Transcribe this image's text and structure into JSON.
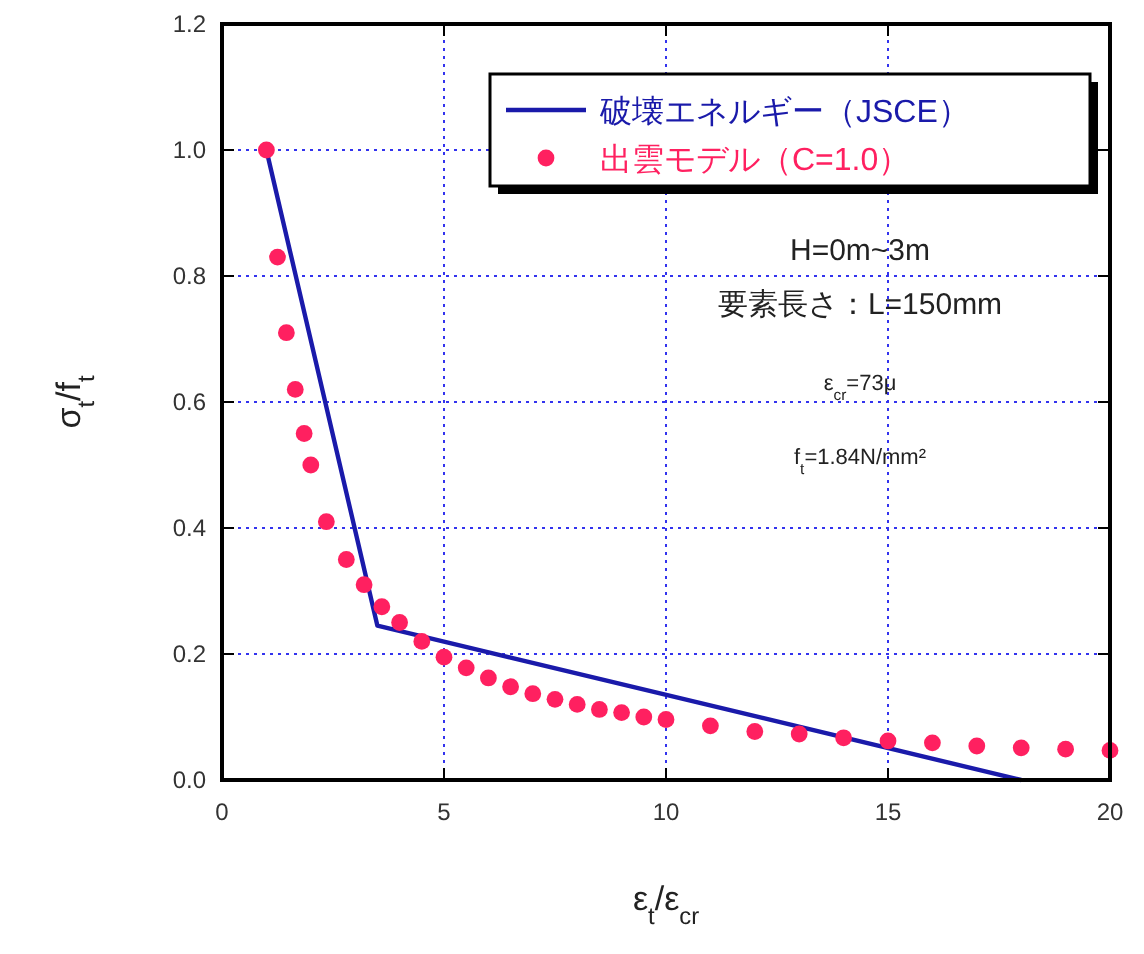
{
  "chart_data": {
    "type": "line",
    "xlabel": "ε$_{t}$/ε$_{cr}$",
    "ylabel": "σ$_{t}$/f$_{t}$",
    "xlim": [
      0,
      20
    ],
    "ylim": [
      0,
      1.2
    ],
    "xticks": [
      0,
      5,
      10,
      15,
      20
    ],
    "yticks": [
      {
        "value": 0,
        "label": "0.0"
      },
      {
        "value": 0.2,
        "label": "0.2"
      },
      {
        "value": 0.4,
        "label": "0.4"
      },
      {
        "value": 0.6,
        "label": "0.6"
      },
      {
        "value": 0.8,
        "label": "0.8"
      },
      {
        "value": 1,
        "label": "1.0"
      },
      {
        "value": 1.2,
        "label": "1.2"
      }
    ],
    "grid": true,
    "legend": "top right",
    "series": [
      {
        "name": "破壊エネルギー（JSCE）",
        "color": "#1a1aaa",
        "marker": "none",
        "line_style": "solid",
        "x": [
          1,
          3.5,
          18
        ],
        "values": [
          1.0,
          0.245,
          0
        ]
      },
      {
        "name": "出雲モデル（C=1.0）",
        "type": "scatter",
        "color": "#ff2060",
        "marker": "circle",
        "x": [
          1,
          1.25,
          1.45,
          1.65,
          1.85,
          2.0,
          2.35,
          2.8,
          3.2,
          3.6,
          4.0,
          4.5,
          5,
          5.5,
          6,
          6.5,
          7,
          7.5,
          8,
          8.5,
          9,
          9.5,
          10,
          11,
          12,
          13,
          14,
          15,
          16,
          17,
          18,
          19,
          20
        ],
        "values": [
          1.0,
          0.83,
          0.71,
          0.62,
          0.55,
          0.5,
          0.41,
          0.35,
          0.31,
          0.275,
          0.25,
          0.22,
          0.195,
          0.178,
          0.162,
          0.148,
          0.137,
          0.128,
          0.12,
          0.112,
          0.107,
          0.1,
          0.096,
          0.086,
          0.077,
          0.073,
          0.067,
          0.062,
          0.059,
          0.054,
          0.051,
          0.049,
          0.047
        ]
      }
    ],
    "annotations": [
      "H=0m~3m",
      "要素長さ：L=150mm",
      "ε$_{cr}$=73μ",
      "f$_{t}$=1.84N/mm²"
    ]
  }
}
